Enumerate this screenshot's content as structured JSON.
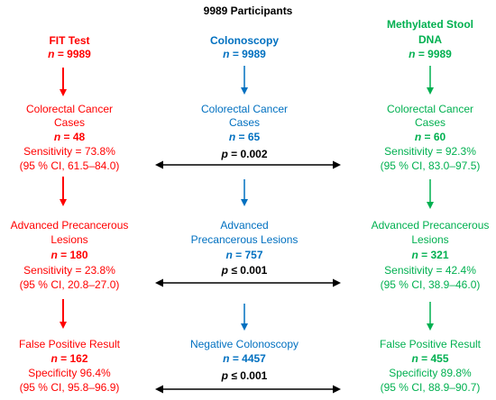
{
  "title": "9989 Participants",
  "colors": {
    "fit": "#ff0000",
    "colonoscopy": "#0070c0",
    "stool": "#00b050",
    "comparison": "#000000"
  },
  "fit": {
    "header": "FIT Test",
    "n": "n = 9989",
    "crc": {
      "label1": "Colorectal Cancer",
      "label2": "Cases",
      "n": "n = 48",
      "stat": "Sensitivity = 73.8%",
      "ci": "(95 % CI, 61.5–84.0)"
    },
    "apl": {
      "label1": "Advanced Precancerous",
      "label2": "Lesions",
      "n": "n = 180",
      "stat": "Sensitivity = 23.8%",
      "ci": "(95 % CI, 20.8–27.0)"
    },
    "fp": {
      "label1": "False Positive Result",
      "n": "n = 162",
      "stat": "Specificity 96.4%",
      "ci": "(95 % CI, 95.8–96.9)"
    }
  },
  "colonoscopy": {
    "header": "Colonoscopy",
    "n": "n = 9989",
    "crc": {
      "label1": "Colorectal Cancer",
      "label2": "Cases",
      "n": "n = 65"
    },
    "apl": {
      "label1": "Advanced",
      "label2": "Precancerous Lesions",
      "n": "n = 757"
    },
    "neg": {
      "label1": "Negative Colonoscopy",
      "n": "n = 4457"
    }
  },
  "stool": {
    "header1": "Methylated Stool",
    "header2": "DNA",
    "n": "n = 9989",
    "crc": {
      "label1": "Colorectal Cancer",
      "label2": "Cases",
      "n": "n = 60",
      "stat": "Sensitivity = 92.3%",
      "ci": "(95 % CI, 83.0–97.5)"
    },
    "apl": {
      "label1": "Advanced Precancerous",
      "label2": "Lesions",
      "n": "n = 321",
      "stat": "Sensitivity = 42.4%",
      "ci": "(95 % CI, 38.9–46.0)"
    },
    "fp": {
      "label1": "False Positive Result",
      "n": "n = 455",
      "stat": "Specificity 89.8%",
      "ci": "(95 % CI, 88.9–90.7)"
    }
  },
  "comparisons": {
    "crc_p": "p = 0.002",
    "apl_p": "p ≤ 0.001",
    "fp_p": "p ≤ 0.001"
  }
}
